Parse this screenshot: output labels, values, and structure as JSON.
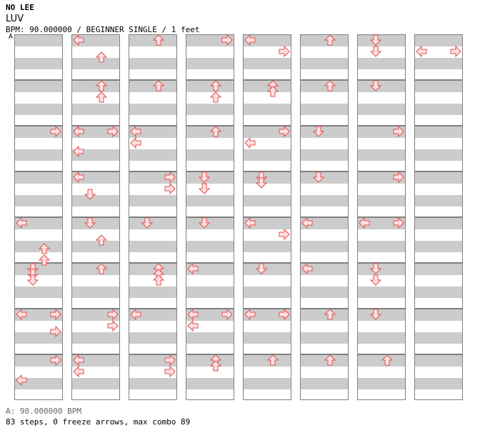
{
  "header": {
    "artist": "NO LEE",
    "title": "LUV",
    "meta": "BPM: 90.000000 / BEGINNER SINGLE / 1 feet",
    "marker": "A"
  },
  "footer": {
    "bpm": "A: 90.000000 BPM",
    "stats": "83 steps, 0 freeze arrows, max combo 89"
  },
  "chart_info": {
    "columns": 8,
    "measures_per_column": 8,
    "rows_per_measure": 4,
    "lanes": [
      "left",
      "down",
      "up",
      "right"
    ],
    "stripe_color": "#cccccc",
    "arrow_fill": "#ffe0e0",
    "arrow_stroke": "#e05050"
  },
  "notes": [
    [
      0,
      0,
      2.5,
      "u"
    ],
    [
      0,
      0,
      3.75,
      "r"
    ],
    [
      0,
      1,
      2.5,
      "d"
    ],
    [
      0,
      1,
      3.0,
      "d"
    ],
    [
      0,
      1,
      3.5,
      "d"
    ],
    [
      0,
      0,
      0.0,
      "u"
    ],
    [
      0,
      0,
      2.0,
      "u"
    ]
  ]
}
